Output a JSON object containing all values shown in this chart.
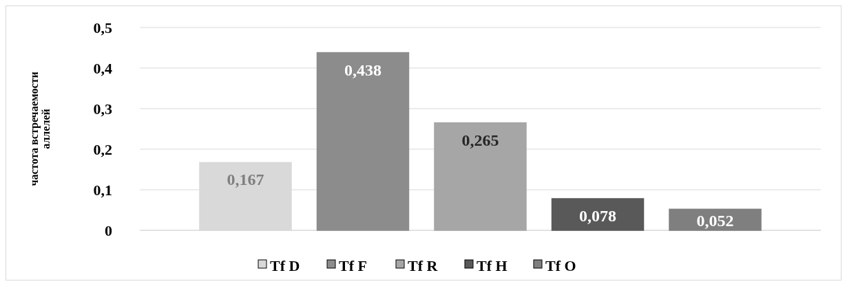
{
  "chart_data": {
    "type": "bar",
    "ylabel": "частота встречаемости аллелей",
    "categories": [
      null
    ],
    "series": [
      {
        "name": "Tf D",
        "color": "#d9d9d9",
        "values": [
          0.167
        ],
        "value_labels": [
          "0,167"
        ]
      },
      {
        "name": "Tf F",
        "color": "#8c8c8c",
        "values": [
          0.438
        ],
        "value_labels": [
          "0,438"
        ]
      },
      {
        "name": "Tf R",
        "color": "#a6a6a6",
        "values": [
          0.265
        ],
        "value_labels": [
          "0,265"
        ]
      },
      {
        "name": "Tf H",
        "color": "#595959",
        "values": [
          0.078
        ],
        "value_labels": [
          "0,078"
        ]
      },
      {
        "name": "Tf O",
        "color": "#7f7f7f",
        "values": [
          0.052
        ],
        "value_labels": [
          "0,052"
        ]
      }
    ],
    "ylim": [
      0,
      0.5
    ],
    "yticks": [
      {
        "value": 0,
        "label": "0"
      },
      {
        "value": 0.1,
        "label": "0,1"
      },
      {
        "value": 0.2,
        "label": "0,2"
      },
      {
        "value": 0.3,
        "label": "0,3"
      },
      {
        "value": 0.4,
        "label": "0,4"
      },
      {
        "value": 0.5,
        "label": "0,5"
      }
    ],
    "grid": "y",
    "legend": "bottom"
  }
}
